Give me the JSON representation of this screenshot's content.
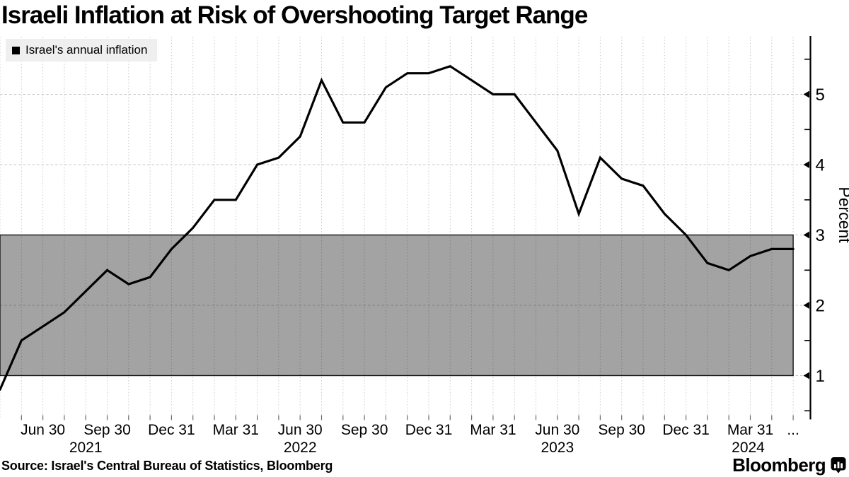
{
  "header": {
    "title": "Israeli Inflation at Risk of Overshooting Target Range"
  },
  "legend": {
    "label": "Israel's annual inflation"
  },
  "footer": {
    "source": "Source: Israel's Central Bureau of Statistics, Bloomberg",
    "brand": "Bloomberg",
    "brand_icon": "bloomberg-chart-bubble-icon"
  },
  "colors": {
    "line": "#000000",
    "target_band": "#a3a3a3",
    "band_border": "#141414",
    "grid": "#c8c8c8",
    "month_tick": "#6b6b6b",
    "axis": "#000000",
    "legend_bg": "#eeeeee",
    "text": "#000000"
  },
  "chart_data": {
    "type": "line",
    "title": "Israeli Inflation at Risk of Overshooting Target Range",
    "ylabel": "Percent",
    "xlabel": "",
    "grid": true,
    "legend_position": "top-left",
    "ylim": [
      0.38,
      5.83
    ],
    "yticks": [
      1,
      2,
      3,
      4,
      5
    ],
    "yticks_minor": [
      0.5,
      1.5,
      2.5,
      3.5,
      4.5,
      5.5
    ],
    "target_band": {
      "from": 1,
      "to": 3
    },
    "x": [
      "Apr 2021",
      "May 2021",
      "Jun 2021",
      "Jul 2021",
      "Aug 2021",
      "Sep 2021",
      "Oct 2021",
      "Nov 2021",
      "Dec 2021",
      "Jan 2022",
      "Feb 2022",
      "Mar 2022",
      "Apr 2022",
      "May 2022",
      "Jun 2022",
      "Jul 2022",
      "Aug 2022",
      "Sep 2022",
      "Oct 2022",
      "Nov 2022",
      "Dec 2022",
      "Jan 2023",
      "Feb 2023",
      "Mar 2023",
      "Apr 2023",
      "May 2023",
      "Jun 2023",
      "Jul 2023",
      "Aug 2023",
      "Sep 2023",
      "Oct 2023",
      "Nov 2023",
      "Dec 2023",
      "Jan 2024",
      "Feb 2024",
      "Mar 2024",
      "Apr 2024",
      "May 2024"
    ],
    "series": [
      {
        "name": "Israel's annual inflation",
        "values": [
          0.8,
          1.5,
          1.7,
          1.9,
          2.2,
          2.5,
          2.3,
          2.4,
          2.8,
          3.1,
          3.5,
          3.5,
          4.0,
          4.1,
          4.4,
          5.2,
          4.6,
          4.6,
          5.1,
          5.3,
          5.3,
          5.4,
          5.2,
          5.0,
          5.0,
          4.6,
          4.2,
          3.3,
          4.1,
          3.8,
          3.7,
          3.3,
          3.0,
          2.6,
          2.5,
          2.7,
          2.8,
          2.8
        ]
      }
    ],
    "x_tick_labels": [
      {
        "label": "Jun 30",
        "month_index": 2
      },
      {
        "label": "Sep 30",
        "month_index": 5
      },
      {
        "label": "Dec 31",
        "month_index": 8
      },
      {
        "label": "Mar 31",
        "month_index": 11
      },
      {
        "label": "Jun 30",
        "month_index": 14
      },
      {
        "label": "Sep 30",
        "month_index": 17
      },
      {
        "label": "Dec 31",
        "month_index": 20
      },
      {
        "label": "Mar 31",
        "month_index": 23
      },
      {
        "label": "Jun 30",
        "month_index": 26
      },
      {
        "label": "Sep 30",
        "month_index": 29
      },
      {
        "label": "Dec 31",
        "month_index": 32
      },
      {
        "label": "Mar 31",
        "month_index": 35
      },
      {
        "label": "...",
        "month_index": 37
      }
    ],
    "year_labels": [
      {
        "label": "2021",
        "month_index": 4
      },
      {
        "label": "2022",
        "month_index": 14
      },
      {
        "label": "2023",
        "month_index": 26
      },
      {
        "label": "2024",
        "month_index": 34.9
      }
    ]
  }
}
